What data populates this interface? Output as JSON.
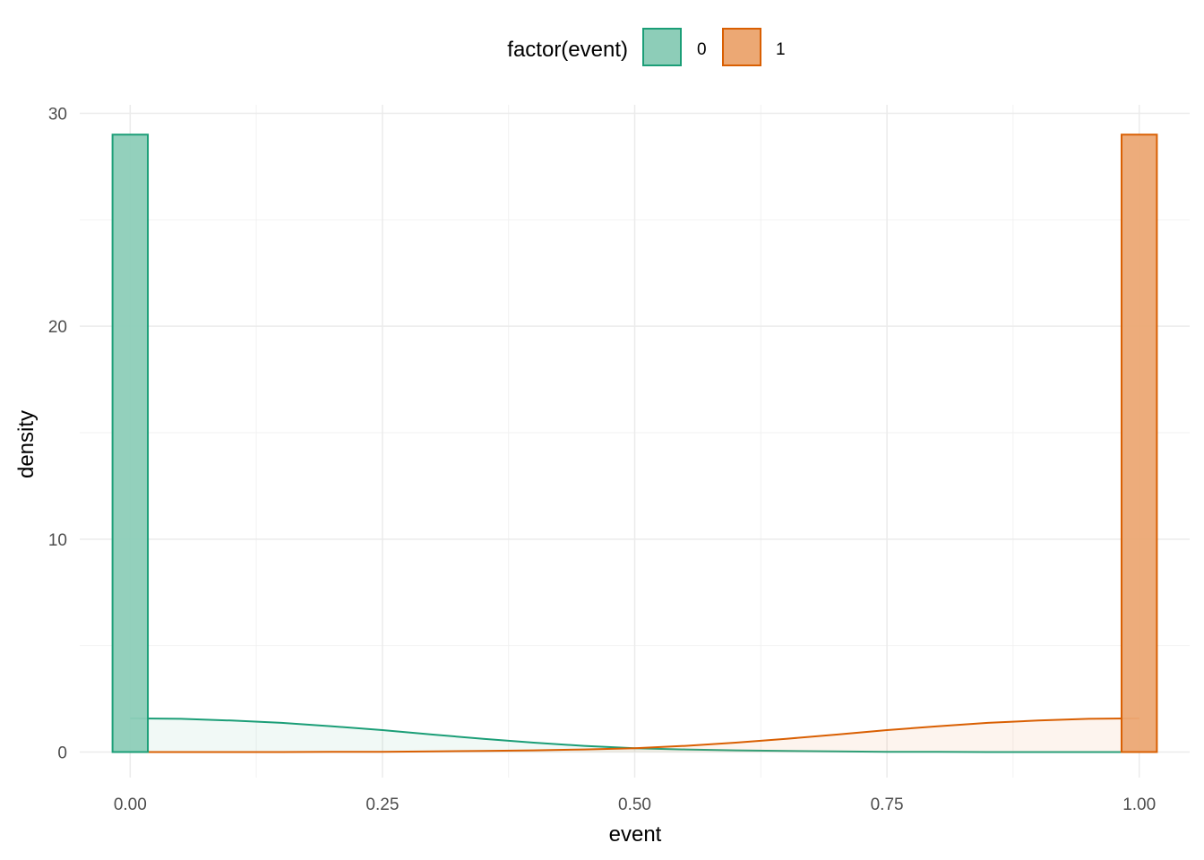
{
  "chart_data": {
    "type": "histogram_density",
    "xlabel": "event",
    "ylabel": "density",
    "xlim": [
      -0.05,
      1.05
    ],
    "ylim": [
      -1.2,
      30.4
    ],
    "x_ticks": [
      0,
      0.25,
      0.5,
      0.75,
      1
    ],
    "x_tick_labels": [
      "0.00",
      "0.25",
      "0.50",
      "0.75",
      "1.00"
    ],
    "y_ticks": [
      0,
      10,
      20,
      30
    ],
    "y_tick_labels": [
      "0",
      "10",
      "20",
      "30"
    ],
    "grid": true,
    "legend": {
      "title": "factor(event)",
      "position": "top",
      "entries": [
        "0",
        "1"
      ]
    },
    "series": [
      {
        "name": "0",
        "color": "#1b9e77",
        "fill": "#8dcdb8",
        "histogram": [
          {
            "x0": -0.0175,
            "x1": 0.0175,
            "density": 29
          }
        ],
        "density_curve": {
          "x": [
            0,
            0.05,
            0.1,
            0.15,
            0.2,
            0.25,
            0.3,
            0.35,
            0.4,
            0.45,
            0.5,
            0.55,
            0.6,
            0.65,
            0.7,
            0.75,
            0.8,
            0.85,
            0.9,
            0.95,
            1
          ],
          "y": [
            1.58,
            1.56,
            1.48,
            1.37,
            1.21,
            1.03,
            0.82,
            0.62,
            0.44,
            0.29,
            0.18,
            0.12,
            0.08,
            0.05,
            0.03,
            0.01,
            0.01,
            0,
            0,
            0,
            0
          ]
        }
      },
      {
        "name": "1",
        "color": "#d95f02",
        "fill": "#eca874",
        "histogram": [
          {
            "x0": 0.9825,
            "x1": 1.0175,
            "density": 29
          }
        ],
        "density_curve": {
          "x": [
            0,
            0.05,
            0.1,
            0.15,
            0.2,
            0.25,
            0.3,
            0.35,
            0.4,
            0.45,
            0.5,
            0.55,
            0.6,
            0.65,
            0.7,
            0.75,
            0.8,
            0.85,
            0.9,
            0.95,
            1
          ],
          "y": [
            0,
            0,
            0,
            0,
            0.01,
            0.01,
            0.03,
            0.05,
            0.08,
            0.12,
            0.18,
            0.29,
            0.44,
            0.62,
            0.82,
            1.03,
            1.21,
            1.37,
            1.48,
            1.56,
            1.58
          ]
        }
      }
    ]
  }
}
